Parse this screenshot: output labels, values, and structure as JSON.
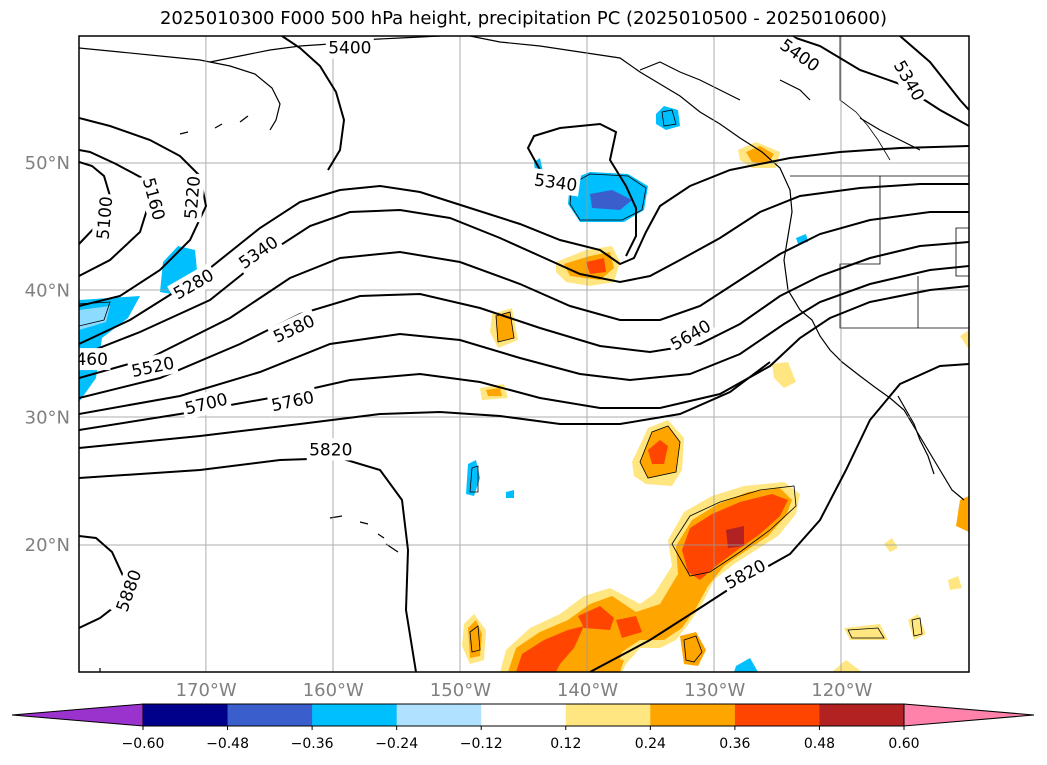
{
  "title": "2025010300 F000 500 hPa height, precipitation PC (2025010500 - 2025010600)",
  "chart_data": {
    "type": "contour-map",
    "region": {
      "lon_range": [
        -180,
        -110
      ],
      "lat_range": [
        10,
        60
      ]
    },
    "grid": true,
    "lon_ticks": [
      {
        "value": -170,
        "label": "170°W"
      },
      {
        "value": -160,
        "label": "160°W"
      },
      {
        "value": -150,
        "label": "150°W"
      },
      {
        "value": -140,
        "label": "140°W"
      },
      {
        "value": -130,
        "label": "130°W"
      },
      {
        "value": -120,
        "label": "120°W"
      }
    ],
    "lat_ticks": [
      {
        "value": 20,
        "label": "20°N"
      },
      {
        "value": 30,
        "label": "30°N"
      },
      {
        "value": 40,
        "label": "40°N"
      },
      {
        "value": 50,
        "label": "50°N"
      }
    ],
    "contour_labels": [
      {
        "text": "5400",
        "lon": -158.7,
        "lat": 59.1,
        "rot": 0
      },
      {
        "text": "5400",
        "lon": -123.3,
        "lat": 58.5,
        "rot": 35
      },
      {
        "text": "5340",
        "lon": -114.7,
        "lat": 56.5,
        "rot": 60
      },
      {
        "text": "5100",
        "lon": -178.0,
        "lat": 45.7,
        "rot": -85
      },
      {
        "text": "5160",
        "lon": -174.1,
        "lat": 47.2,
        "rot": 75
      },
      {
        "text": "5220",
        "lon": -171.1,
        "lat": 47.3,
        "rot": -85
      },
      {
        "text": "5340",
        "lon": -142.5,
        "lat": 48.5,
        "rot": 8
      },
      {
        "text": "5280",
        "lon": -171.0,
        "lat": 40.5,
        "rot": -30
      },
      {
        "text": "5340",
        "lon": -165.9,
        "lat": 43.0,
        "rot": -35
      },
      {
        "text": "460",
        "lon": -179.0,
        "lat": 34.6,
        "rot": 0
      },
      {
        "text": "5520",
        "lon": -174.2,
        "lat": 34.0,
        "rot": -12
      },
      {
        "text": "5580",
        "lon": -163.1,
        "lat": 37.0,
        "rot": -25
      },
      {
        "text": "5640",
        "lon": -131.9,
        "lat": 36.5,
        "rot": -30
      },
      {
        "text": "5700",
        "lon": -170.0,
        "lat": 31.1,
        "rot": -14
      },
      {
        "text": "5760",
        "lon": -163.2,
        "lat": 31.3,
        "rot": -12
      },
      {
        "text": "5820",
        "lon": -160.2,
        "lat": 27.5,
        "rot": 0
      },
      {
        "text": "5820",
        "lon": -127.6,
        "lat": 17.7,
        "rot": -28
      },
      {
        "text": "5880",
        "lon": -176.1,
        "lat": 16.4,
        "rot": -70
      }
    ],
    "colorbar": {
      "ticks": [
        "−0.60",
        "−0.48",
        "−0.36",
        "−0.24",
        "−0.12",
        "0.12",
        "0.24",
        "0.36",
        "0.48",
        "0.60"
      ],
      "colors": [
        "#9a32cd",
        "#00008b",
        "#3a5fcd",
        "#00bfff",
        "#b0e2ff",
        "#ffffff",
        "#ffe680",
        "#ffa500",
        "#ff4500",
        "#b22222",
        "#ff82ab",
        "#ff82ab"
      ]
    }
  }
}
